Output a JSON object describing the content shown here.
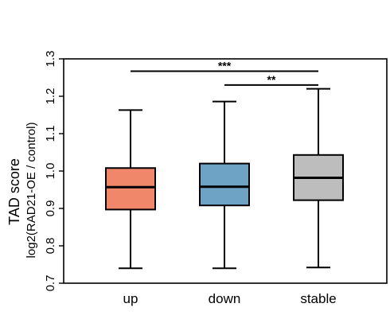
{
  "chart_data": {
    "type": "box",
    "ylabel_main": "TAD score",
    "ylabel_sub": "log2(RAD21-OE / control)",
    "ylim": [
      0.7,
      1.3
    ],
    "yticks": [
      0.7,
      0.8,
      0.9,
      1.0,
      1.1,
      1.2,
      1.3
    ],
    "ytick_labels": [
      "0.7",
      "0.8",
      "0.9",
      "1.0",
      "1.1",
      "1.2",
      "1.3"
    ],
    "categories": [
      "up",
      "down",
      "stable"
    ],
    "boxes": [
      {
        "name": "up",
        "whisker_low": 0.74,
        "q1": 0.897,
        "median": 0.957,
        "q3": 1.008,
        "whisker_high": 1.163,
        "color": "#F0876A"
      },
      {
        "name": "down",
        "whisker_low": 0.74,
        "q1": 0.908,
        "median": 0.958,
        "q3": 1.02,
        "whisker_high": 1.186,
        "color": "#6FA3C6"
      },
      {
        "name": "stable",
        "whisker_low": 0.742,
        "q1": 0.922,
        "median": 0.982,
        "q3": 1.043,
        "whisker_high": 1.22,
        "color": "#BDBDBD"
      }
    ],
    "significance": [
      {
        "from": "up",
        "to": "stable",
        "label": "***",
        "y": 1.267
      },
      {
        "from": "down",
        "to": "stable",
        "label": "**",
        "y": 1.23
      }
    ],
    "grid": false
  }
}
